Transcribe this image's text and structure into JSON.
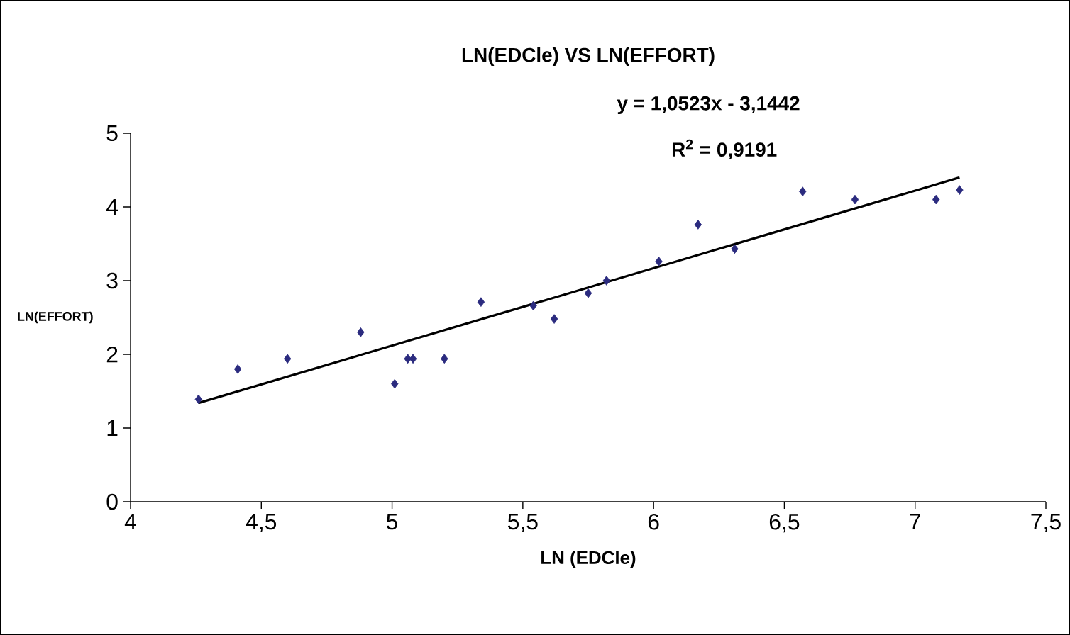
{
  "chart_data": {
    "type": "scatter",
    "title": "LN(EDCle) VS LN(EFFORT)",
    "xlabel": "LN (EDCle)",
    "ylabel": "LN(EFFORT)",
    "annotations": [
      "y = 1,0523x - 3,1442",
      "R$^{2}$ = 0,9191"
    ],
    "series": [
      {
        "color": "#2b2b7f",
        "marker": "diamond",
        "x": [
          4.26,
          4.41,
          4.6,
          4.88,
          5.01,
          5.06,
          5.08,
          5.2,
          5.34,
          5.54,
          5.62,
          5.75,
          5.82,
          6.02,
          6.17,
          6.31,
          6.57,
          6.77,
          7.08,
          7.17
        ],
        "values": [
          1.39,
          1.8,
          1.94,
          2.3,
          1.6,
          1.94,
          1.94,
          1.94,
          2.71,
          2.66,
          2.48,
          2.83,
          3.0,
          3.26,
          3.76,
          3.43,
          4.21,
          4.1,
          4.1,
          4.23
        ]
      },
      {
        "type": "line",
        "color": "#000000",
        "marker": "none",
        "line_style": "solid",
        "x": [
          4.26,
          7.17
        ],
        "values": [
          1.34,
          4.4
        ]
      }
    ],
    "xlim": [
      4,
      7.5
    ],
    "ylim": [
      0,
      5
    ],
    "xticks": [
      4,
      {
        "value": 4.5,
        "label": "4,5"
      },
      5,
      {
        "value": 5.5,
        "label": "5,5"
      },
      6,
      {
        "value": 6.5,
        "label": "6,5"
      },
      7,
      {
        "value": 7.5,
        "label": "7,5"
      }
    ],
    "yticks": [
      0,
      1,
      2,
      3,
      4,
      5
    ],
    "grid": false
  }
}
